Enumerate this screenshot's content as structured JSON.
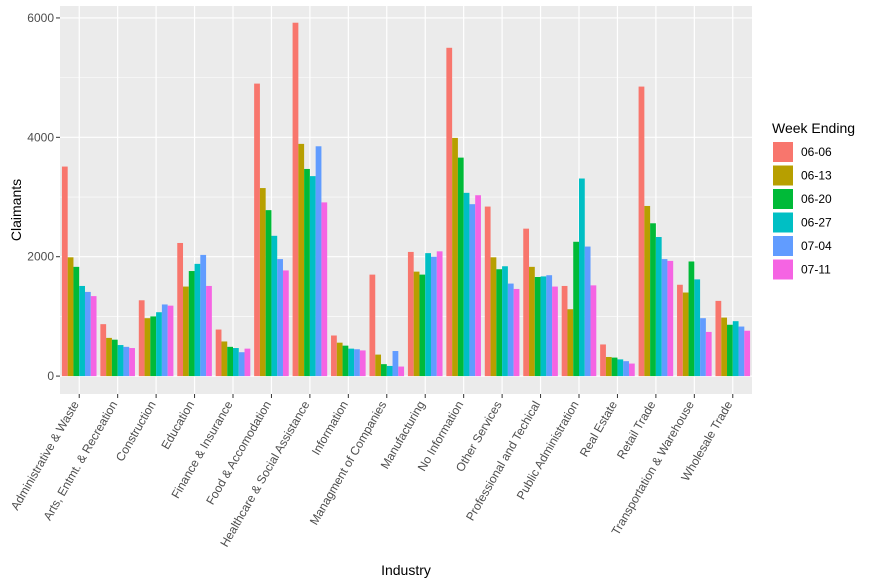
{
  "chart_data": {
    "type": "bar",
    "xlabel": "Industry",
    "ylabel": "Claimants",
    "ylim": [
      -300,
      6200
    ],
    "yticks": [
      0,
      2000,
      4000,
      6000
    ],
    "grid": true,
    "legend_title": "Week Ending",
    "legend_position": "right",
    "categories": [
      "Administrative & Waste",
      "Arts, Entmt. & Recreation",
      "Construction",
      "Education",
      "Finance & Insurance",
      "Food & Accomodation",
      "Healthcare & Social Assistance",
      "Information",
      "Managment of Companies",
      "Manufacturing",
      "No Information",
      "Other Services",
      "Professional and Techical",
      "Public Administration",
      "Real Estate",
      "Retail Trade",
      "Transportation & Warehouse",
      "Wholesale Trade"
    ],
    "series": [
      {
        "name": "06-06",
        "color": "#F8766D",
        "values": [
          3510,
          870,
          1270,
          2230,
          780,
          4900,
          5920,
          680,
          1700,
          2080,
          5500,
          2840,
          2470,
          1510,
          530,
          4850,
          1530,
          1260
        ]
      },
      {
        "name": "06-13",
        "color": "#B79F00",
        "values": [
          1990,
          640,
          970,
          1500,
          580,
          3150,
          3890,
          560,
          360,
          1750,
          3990,
          1990,
          1830,
          1120,
          320,
          2850,
          1400,
          980
        ]
      },
      {
        "name": "06-20",
        "color": "#00BA38",
        "values": [
          1830,
          610,
          1000,
          1760,
          490,
          2780,
          3470,
          510,
          200,
          1700,
          3660,
          1790,
          1660,
          2250,
          310,
          2560,
          1920,
          860
        ]
      },
      {
        "name": "06-27",
        "color": "#00BFC4",
        "values": [
          1510,
          520,
          1070,
          1880,
          470,
          2350,
          3350,
          460,
          170,
          2060,
          3070,
          1840,
          1670,
          3310,
          280,
          2330,
          1620,
          920
        ]
      },
      {
        "name": "07-04",
        "color": "#619CFF",
        "values": [
          1410,
          490,
          1200,
          2030,
          400,
          1960,
          3850,
          450,
          420,
          2000,
          2880,
          1550,
          1690,
          2170,
          250,
          1960,
          970,
          830
        ]
      },
      {
        "name": "07-11",
        "color": "#F564E3",
        "values": [
          1340,
          470,
          1180,
          1510,
          460,
          1770,
          2910,
          430,
          160,
          2090,
          3030,
          1460,
          1500,
          1520,
          210,
          1930,
          740,
          760
        ]
      }
    ]
  }
}
